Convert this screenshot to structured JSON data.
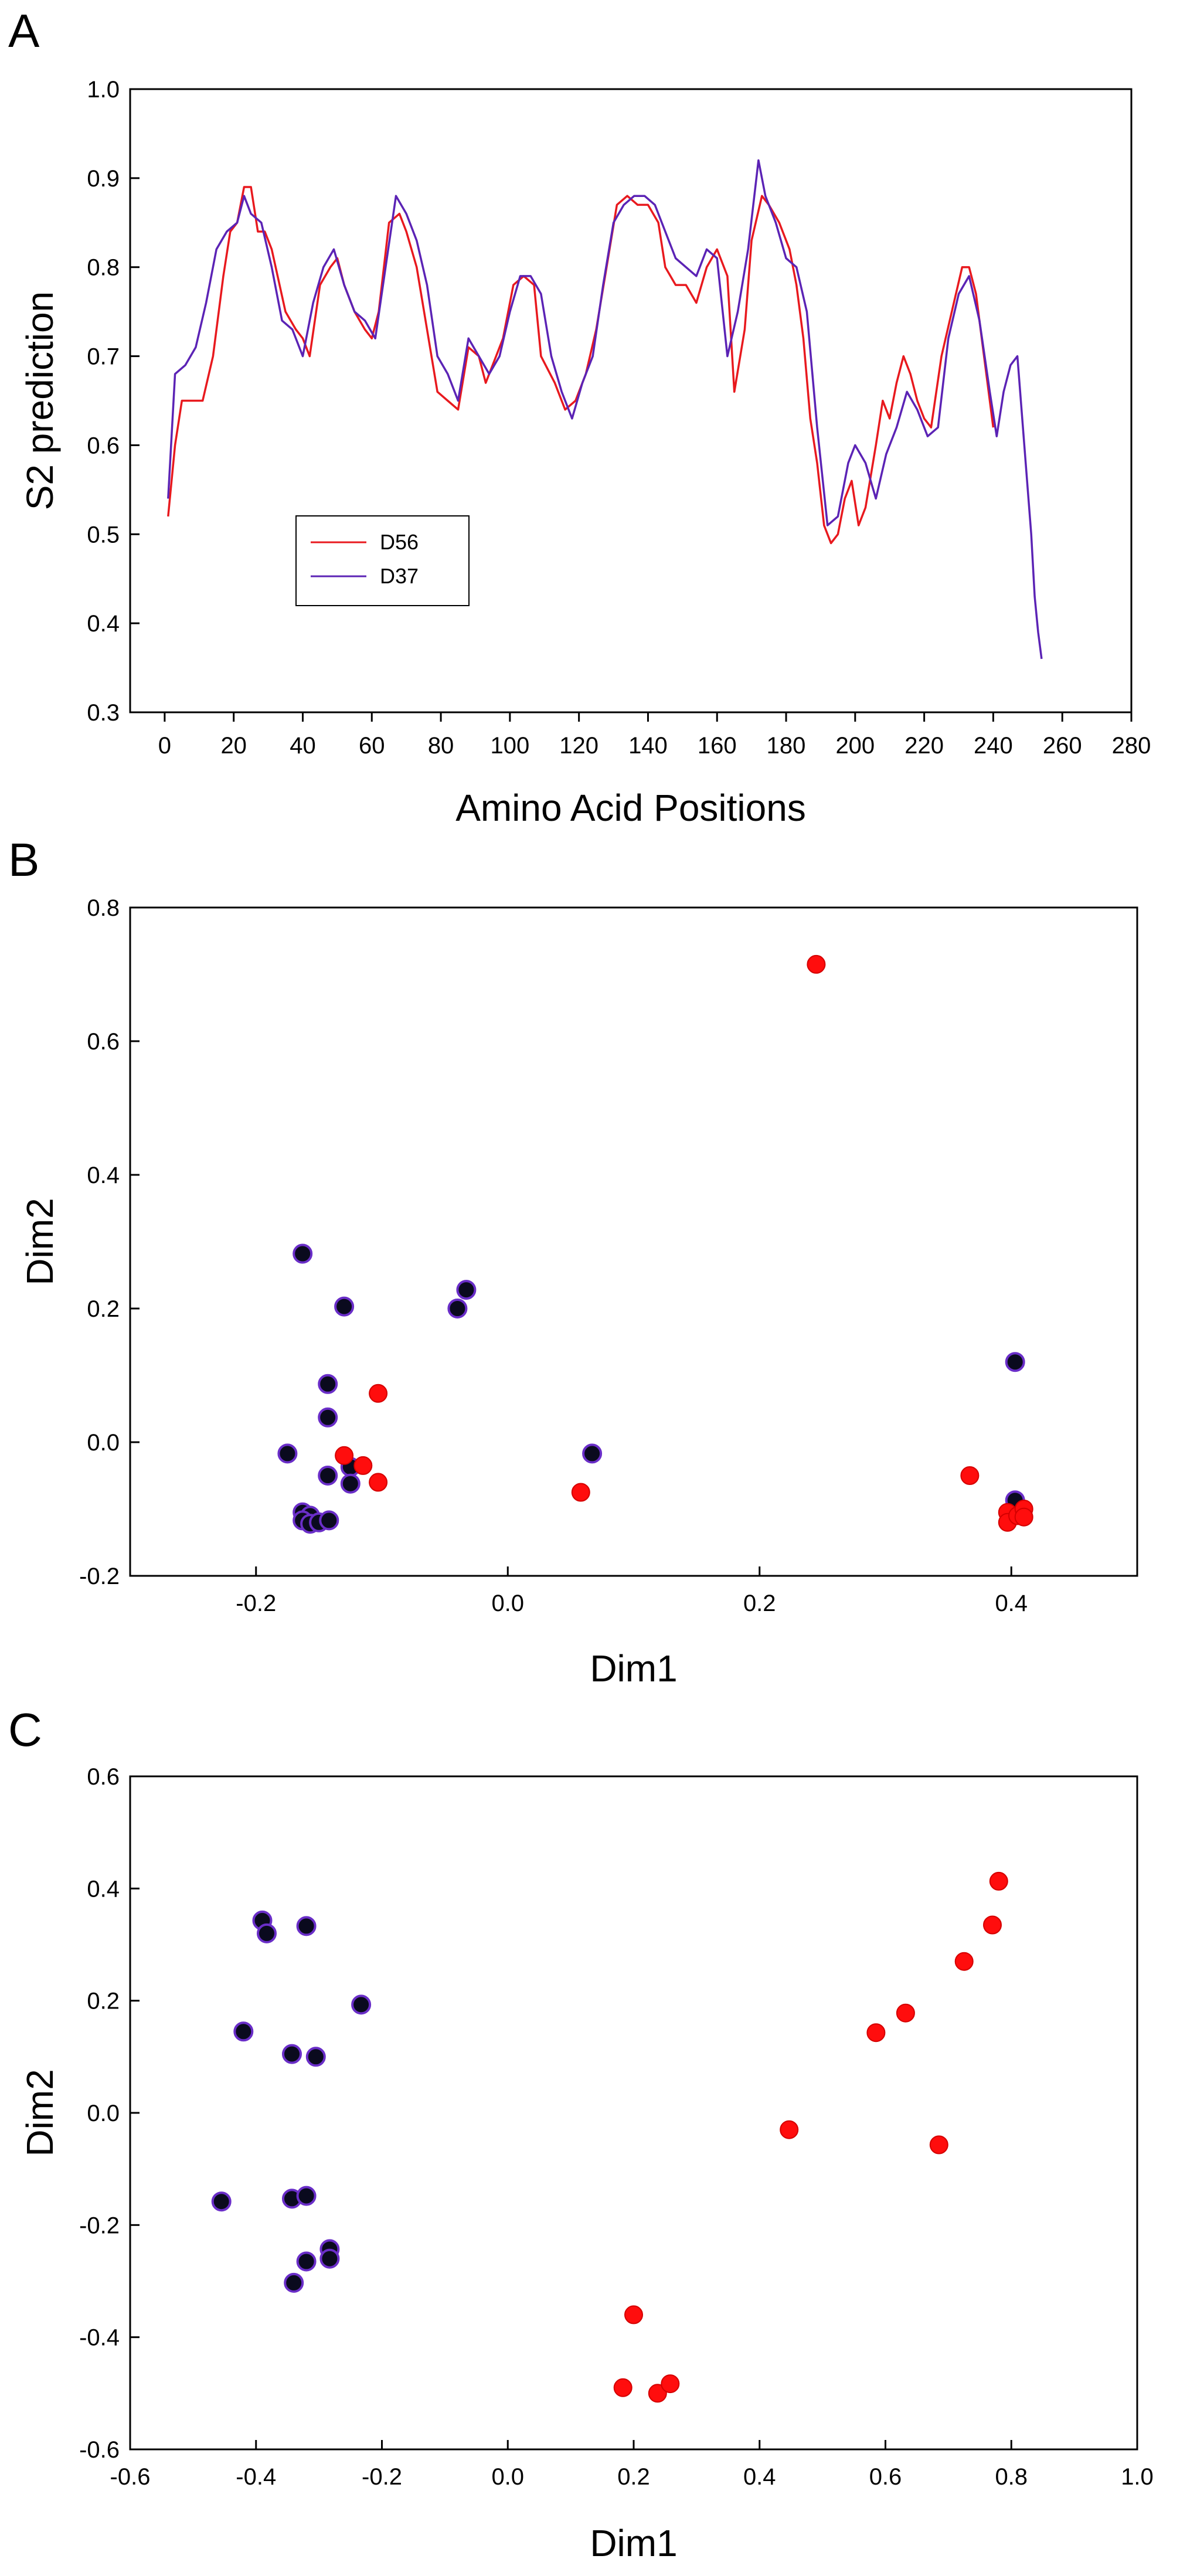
{
  "colors": {
    "d56": "#e8191e",
    "d37": "#5b23b5",
    "dot_red": "#ff0d0d",
    "dot_black": "#0a0a1e",
    "dot_ring": "#6a2ec8"
  },
  "chart_data": [
    {
      "type": "line",
      "panel": "A",
      "xlabel": "Amino Acid Positions",
      "ylabel": "S2 prediction",
      "xlim": [
        -10,
        280
      ],
      "ylim": [
        0.3,
        1.0
      ],
      "xticks": [
        "0",
        "20",
        "40",
        "60",
        "80",
        "100",
        "120",
        "140",
        "160",
        "180",
        "200",
        "220",
        "240",
        "260",
        "280"
      ],
      "yticks": [
        "0.3",
        "0.4",
        "0.5",
        "0.6",
        "0.7",
        "0.8",
        "0.9",
        "1.0"
      ],
      "legend": [
        "D56",
        "D37"
      ],
      "series": [
        {
          "name": "D56",
          "points": [
            [
              1,
              0.52
            ],
            [
              3,
              0.6
            ],
            [
              5,
              0.65
            ],
            [
              9,
              0.65
            ],
            [
              11,
              0.65
            ],
            [
              14,
              0.7
            ],
            [
              17,
              0.79
            ],
            [
              19,
              0.84
            ],
            [
              21,
              0.85
            ],
            [
              23,
              0.89
            ],
            [
              25,
              0.89
            ],
            [
              27,
              0.84
            ],
            [
              29,
              0.84
            ],
            [
              31,
              0.82
            ],
            [
              35,
              0.75
            ],
            [
              38,
              0.73
            ],
            [
              40,
              0.72
            ],
            [
              42,
              0.7
            ],
            [
              45,
              0.78
            ],
            [
              48,
              0.8
            ],
            [
              50,
              0.81
            ],
            [
              52,
              0.78
            ],
            [
              55,
              0.75
            ],
            [
              58,
              0.73
            ],
            [
              60,
              0.72
            ],
            [
              62,
              0.75
            ],
            [
              65,
              0.85
            ],
            [
              68,
              0.86
            ],
            [
              70,
              0.84
            ],
            [
              73,
              0.8
            ],
            [
              76,
              0.73
            ],
            [
              79,
              0.66
            ],
            [
              82,
              0.65
            ],
            [
              85,
              0.64
            ],
            [
              88,
              0.71
            ],
            [
              91,
              0.7
            ],
            [
              93,
              0.67
            ],
            [
              95,
              0.69
            ],
            [
              98,
              0.72
            ],
            [
              101,
              0.78
            ],
            [
              104,
              0.79
            ],
            [
              107,
              0.78
            ],
            [
              109,
              0.7
            ],
            [
              113,
              0.67
            ],
            [
              116,
              0.64
            ],
            [
              119,
              0.65
            ],
            [
              122,
              0.68
            ],
            [
              125,
              0.73
            ],
            [
              128,
              0.8
            ],
            [
              131,
              0.87
            ],
            [
              134,
              0.88
            ],
            [
              137,
              0.87
            ],
            [
              140,
              0.87
            ],
            [
              143,
              0.85
            ],
            [
              145,
              0.8
            ],
            [
              148,
              0.78
            ],
            [
              151,
              0.78
            ],
            [
              154,
              0.76
            ],
            [
              157,
              0.8
            ],
            [
              160,
              0.82
            ],
            [
              163,
              0.79
            ],
            [
              165,
              0.66
            ],
            [
              168,
              0.73
            ],
            [
              170,
              0.83
            ],
            [
              173,
              0.88
            ],
            [
              175,
              0.87
            ],
            [
              178,
              0.85
            ],
            [
              181,
              0.82
            ],
            [
              183,
              0.78
            ],
            [
              185,
              0.72
            ],
            [
              187,
              0.63
            ],
            [
              189,
              0.58
            ],
            [
              191,
              0.51
            ],
            [
              193,
              0.49
            ],
            [
              195,
              0.5
            ],
            [
              197,
              0.54
            ],
            [
              199,
              0.56
            ],
            [
              201,
              0.51
            ],
            [
              203,
              0.53
            ],
            [
              206,
              0.6
            ],
            [
              208,
              0.65
            ],
            [
              210,
              0.63
            ],
            [
              212,
              0.67
            ],
            [
              214,
              0.7
            ],
            [
              216,
              0.68
            ],
            [
              218,
              0.65
            ],
            [
              220,
              0.63
            ],
            [
              222,
              0.62
            ],
            [
              225,
              0.7
            ],
            [
              228,
              0.75
            ],
            [
              231,
              0.8
            ],
            [
              233,
              0.8
            ],
            [
              235,
              0.77
            ],
            [
              237,
              0.71
            ],
            [
              240,
              0.62
            ]
          ]
        },
        {
          "name": "D37",
          "points": [
            [
              1,
              0.54
            ],
            [
              3,
              0.68
            ],
            [
              6,
              0.69
            ],
            [
              9,
              0.71
            ],
            [
              12,
              0.76
            ],
            [
              15,
              0.82
            ],
            [
              18,
              0.84
            ],
            [
              21,
              0.85
            ],
            [
              23,
              0.88
            ],
            [
              25,
              0.86
            ],
            [
              28,
              0.85
            ],
            [
              31,
              0.8
            ],
            [
              34,
              0.74
            ],
            [
              37,
              0.73
            ],
            [
              40,
              0.7
            ],
            [
              43,
              0.76
            ],
            [
              46,
              0.8
            ],
            [
              49,
              0.82
            ],
            [
              52,
              0.78
            ],
            [
              55,
              0.75
            ],
            [
              58,
              0.74
            ],
            [
              61,
              0.72
            ],
            [
              64,
              0.8
            ],
            [
              67,
              0.88
            ],
            [
              70,
              0.86
            ],
            [
              73,
              0.83
            ],
            [
              76,
              0.78
            ],
            [
              79,
              0.7
            ],
            [
              82,
              0.68
            ],
            [
              85,
              0.65
            ],
            [
              88,
              0.72
            ],
            [
              91,
              0.7
            ],
            [
              94,
              0.68
            ],
            [
              97,
              0.7
            ],
            [
              100,
              0.75
            ],
            [
              103,
              0.79
            ],
            [
              106,
              0.79
            ],
            [
              109,
              0.77
            ],
            [
              112,
              0.7
            ],
            [
              115,
              0.66
            ],
            [
              118,
              0.63
            ],
            [
              121,
              0.67
            ],
            [
              124,
              0.7
            ],
            [
              127,
              0.78
            ],
            [
              130,
              0.85
            ],
            [
              133,
              0.87
            ],
            [
              136,
              0.88
            ],
            [
              139,
              0.88
            ],
            [
              142,
              0.87
            ],
            [
              145,
              0.84
            ],
            [
              148,
              0.81
            ],
            [
              151,
              0.8
            ],
            [
              154,
              0.79
            ],
            [
              157,
              0.82
            ],
            [
              160,
              0.81
            ],
            [
              163,
              0.7
            ],
            [
              166,
              0.75
            ],
            [
              169,
              0.82
            ],
            [
              172,
              0.92
            ],
            [
              174,
              0.88
            ],
            [
              177,
              0.85
            ],
            [
              180,
              0.81
            ],
            [
              183,
              0.8
            ],
            [
              186,
              0.75
            ],
            [
              189,
              0.62
            ],
            [
              192,
              0.51
            ],
            [
              195,
              0.52
            ],
            [
              198,
              0.58
            ],
            [
              200,
              0.6
            ],
            [
              203,
              0.58
            ],
            [
              206,
              0.54
            ],
            [
              209,
              0.59
            ],
            [
              212,
              0.62
            ],
            [
              215,
              0.66
            ],
            [
              218,
              0.64
            ],
            [
              221,
              0.61
            ],
            [
              224,
              0.62
            ],
            [
              227,
              0.72
            ],
            [
              230,
              0.77
            ],
            [
              233,
              0.79
            ],
            [
              236,
              0.74
            ],
            [
              239,
              0.66
            ],
            [
              241,
              0.61
            ],
            [
              243,
              0.66
            ],
            [
              245,
              0.69
            ],
            [
              247,
              0.7
            ],
            [
              249,
              0.6
            ],
            [
              251,
              0.5
            ],
            [
              252,
              0.43
            ],
            [
              253,
              0.39
            ],
            [
              254,
              0.36
            ]
          ]
        }
      ]
    },
    {
      "type": "scatter",
      "panel": "B",
      "xlabel": "Dim1",
      "ylabel": "Dim2",
      "xlim": [
        -0.3,
        0.5
      ],
      "ylim": [
        -0.2,
        0.8
      ],
      "xticks": [
        "-0.2",
        "0.0",
        "0.2",
        "0.4"
      ],
      "yticks": [
        "-0.2",
        "0.0",
        "0.2",
        "0.4",
        "0.6",
        "0.8"
      ],
      "series": [
        {
          "name": "red",
          "points": [
            [
              0.245,
              0.715
            ],
            [
              -0.103,
              0.073
            ],
            [
              -0.13,
              -0.02
            ],
            [
              -0.115,
              -0.035
            ],
            [
              -0.103,
              -0.06
            ],
            [
              0.058,
              -0.075
            ],
            [
              0.367,
              -0.05
            ],
            [
              0.397,
              -0.105
            ],
            [
              0.397,
              -0.12
            ],
            [
              0.405,
              -0.11
            ],
            [
              0.41,
              -0.1
            ],
            [
              0.41,
              -0.112
            ]
          ]
        },
        {
          "name": "black",
          "points": [
            [
              -0.163,
              0.282
            ],
            [
              -0.13,
              0.203
            ],
            [
              -0.04,
              0.2
            ],
            [
              -0.033,
              0.228
            ],
            [
              -0.143,
              0.087
            ],
            [
              -0.143,
              0.037
            ],
            [
              -0.175,
              -0.017
            ],
            [
              0.067,
              -0.017
            ],
            [
              -0.125,
              -0.037
            ],
            [
              -0.143,
              -0.05
            ],
            [
              -0.125,
              -0.062
            ],
            [
              -0.163,
              -0.105
            ],
            [
              -0.157,
              -0.11
            ],
            [
              -0.163,
              -0.117
            ],
            [
              -0.157,
              -0.122
            ],
            [
              -0.15,
              -0.12
            ],
            [
              -0.142,
              -0.117
            ],
            [
              0.403,
              0.12
            ],
            [
              0.403,
              -0.087
            ]
          ]
        }
      ]
    },
    {
      "type": "scatter",
      "panel": "C",
      "xlabel": "Dim1",
      "ylabel": "Dim2",
      "xlim": [
        -0.6,
        1.0
      ],
      "ylim": [
        -0.6,
        0.6
      ],
      "xticks": [
        "-0.6",
        "-0.4",
        "-0.2",
        "0.0",
        "0.2",
        "0.4",
        "0.6",
        "0.8",
        "1.0"
      ],
      "yticks": [
        "-0.6",
        "-0.4",
        "-0.2",
        "0.0",
        "0.2",
        "0.4",
        "0.6"
      ],
      "series": [
        {
          "name": "red",
          "points": [
            [
              0.78,
              0.413
            ],
            [
              0.77,
              0.335
            ],
            [
              0.725,
              0.27
            ],
            [
              0.632,
              0.178
            ],
            [
              0.585,
              0.143
            ],
            [
              0.447,
              -0.03
            ],
            [
              0.685,
              -0.057
            ],
            [
              0.2,
              -0.36
            ],
            [
              0.183,
              -0.49
            ],
            [
              0.238,
              -0.5
            ],
            [
              0.258,
              -0.483
            ]
          ]
        },
        {
          "name": "black",
          "points": [
            [
              -0.39,
              0.343
            ],
            [
              -0.383,
              0.32
            ],
            [
              -0.32,
              0.333
            ],
            [
              -0.233,
              0.193
            ],
            [
              -0.42,
              0.145
            ],
            [
              -0.343,
              0.105
            ],
            [
              -0.305,
              0.1
            ],
            [
              -0.455,
              -0.158
            ],
            [
              -0.343,
              -0.153
            ],
            [
              -0.32,
              -0.148
            ],
            [
              -0.283,
              -0.243
            ],
            [
              -0.283,
              -0.26
            ],
            [
              -0.32,
              -0.265
            ],
            [
              -0.34,
              -0.303
            ]
          ]
        }
      ]
    }
  ]
}
